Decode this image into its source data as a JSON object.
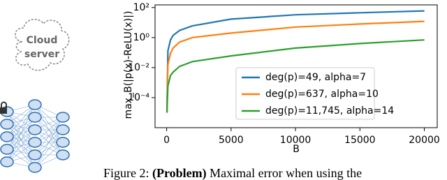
{
  "diagram": {
    "cloud_label": [
      "Cloud",
      "server"
    ]
  },
  "chart_data": {
    "type": "line",
    "log_y": true,
    "ylabel": "max_B(|p(x)-ReLU(x)|)",
    "xlabel": "B",
    "x": [
      20,
      100,
      300,
      500,
      1000,
      2000,
      5000,
      10000,
      15000,
      20000
    ],
    "series": [
      {
        "name": "deg(p)=49, alpha=7",
        "color": "#1f77b4",
        "values": [
          1e-05,
          0.13,
          0.7,
          1.4,
          3,
          6,
          17,
          33,
          45,
          60
        ]
      },
      {
        "name": "deg(p)=637, alpha=10",
        "color": "#ff7f0e",
        "values": [
          1e-05,
          0.016,
          0.09,
          0.2,
          0.5,
          1,
          2,
          5,
          8,
          12
        ]
      },
      {
        "name": "deg(p)=11,745, alpha=14",
        "color": "#2ca02c",
        "values": [
          1e-05,
          0.0006,
          0.003,
          0.005,
          0.012,
          0.025,
          0.06,
          0.2,
          0.4,
          0.7
        ]
      }
    ],
    "xlim": [
      -900,
      21000
    ],
    "xticks": [
      0,
      5000,
      10000,
      15000,
      20000
    ],
    "ylim": [
      1e-06,
      150
    ],
    "yticks": [
      {
        "value": 100,
        "label": "10²"
      },
      {
        "value": 1,
        "label": "10⁰"
      },
      {
        "value": 0.01,
        "label": "10⁻²"
      },
      {
        "value": 0.0001,
        "label": "10⁻⁴"
      }
    ],
    "legend": "lower right"
  },
  "caption": {
    "prefix": "Figure 2:",
    "bold": "(Problem)",
    "text": "Maximal error when using the"
  }
}
